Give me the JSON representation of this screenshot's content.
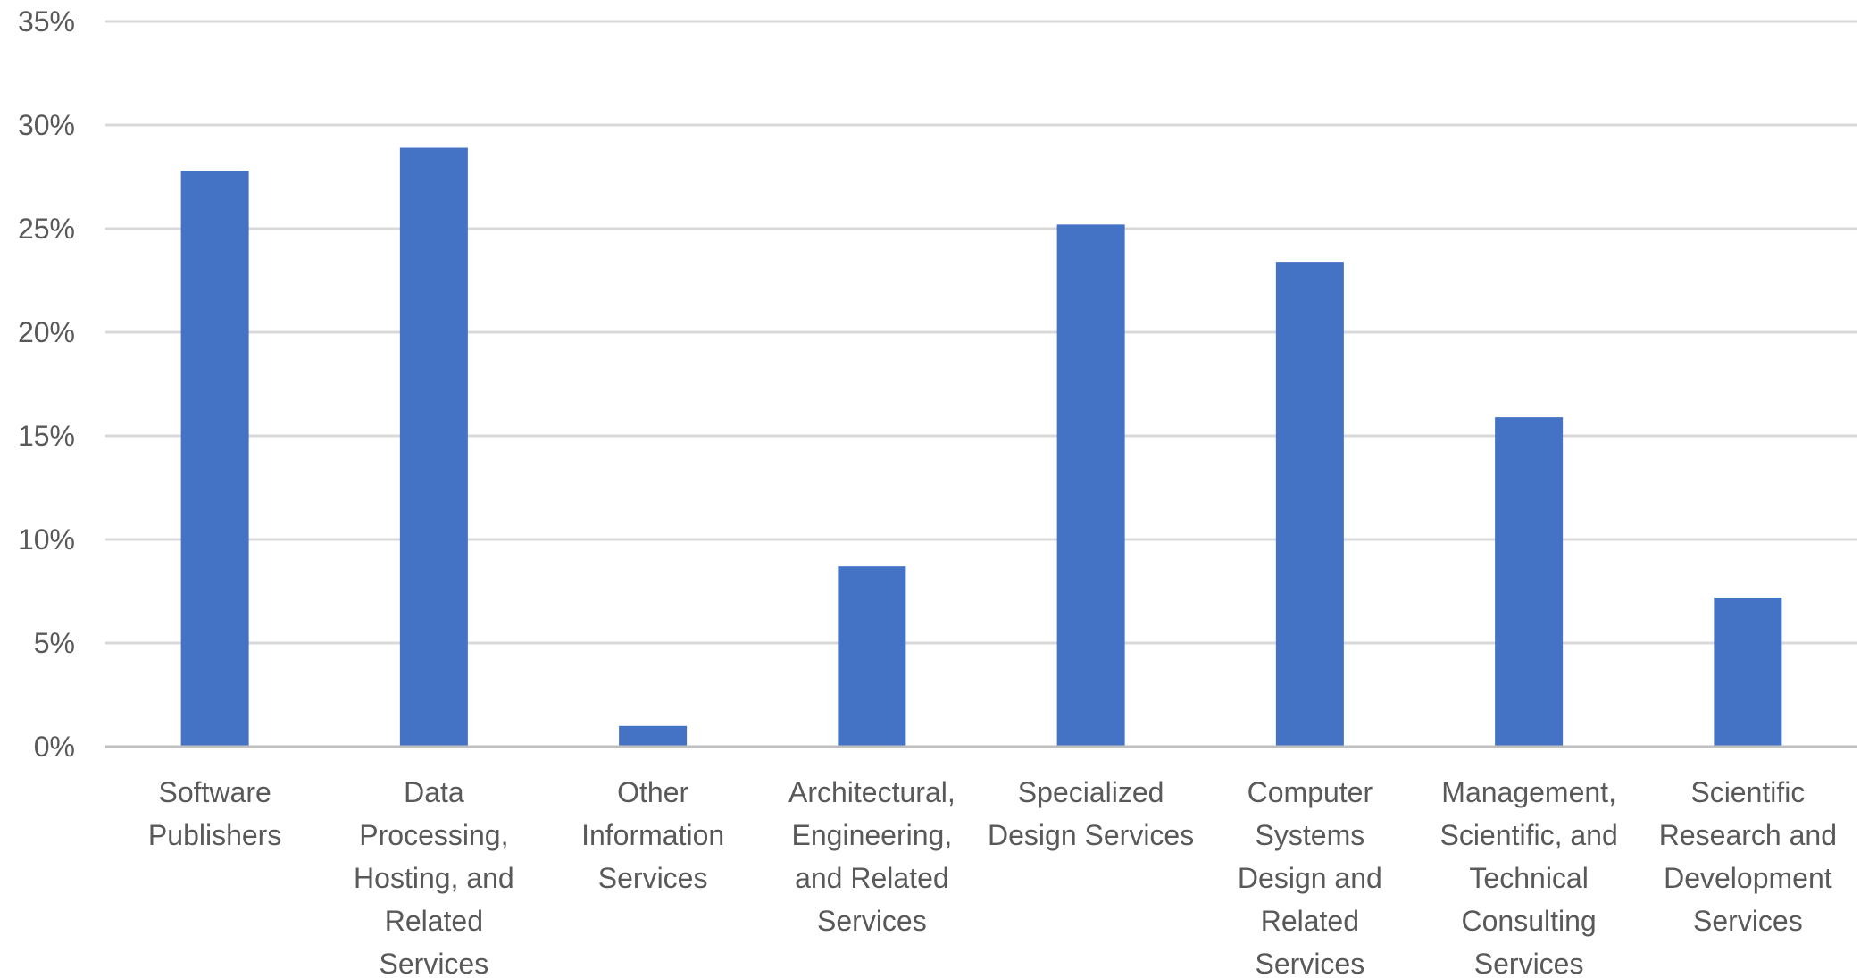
{
  "chart_data": {
    "type": "bar",
    "title": "",
    "xlabel": "",
    "ylabel": "",
    "ylim": [
      0,
      35
    ],
    "y_ticks": [
      "0%",
      "5%",
      "10%",
      "15%",
      "20%",
      "25%",
      "30%",
      "35%"
    ],
    "grid": true,
    "legend": "none",
    "categories": [
      [
        "Software",
        "Publishers"
      ],
      [
        "Data",
        "Processing,",
        "Hosting, and",
        "Related",
        "Services"
      ],
      [
        "Other",
        "Information",
        "Services"
      ],
      [
        "Architectural,",
        "Engineering,",
        "and Related",
        "Services"
      ],
      [
        "Specialized",
        "Design Services"
      ],
      [
        "Computer",
        "Systems",
        "Design and",
        "Related",
        "Services"
      ],
      [
        "Management,",
        "Scientific, and",
        "Technical",
        "Consulting",
        "Services"
      ],
      [
        "Scientific",
        "Research and",
        "Development",
        "Services"
      ]
    ],
    "values": [
      27.8,
      28.9,
      1.0,
      8.7,
      25.2,
      23.4,
      15.9,
      7.2
    ],
    "colors": {
      "bar": "#4472c4",
      "grid": "#d9d9d9",
      "text": "#595959"
    }
  }
}
